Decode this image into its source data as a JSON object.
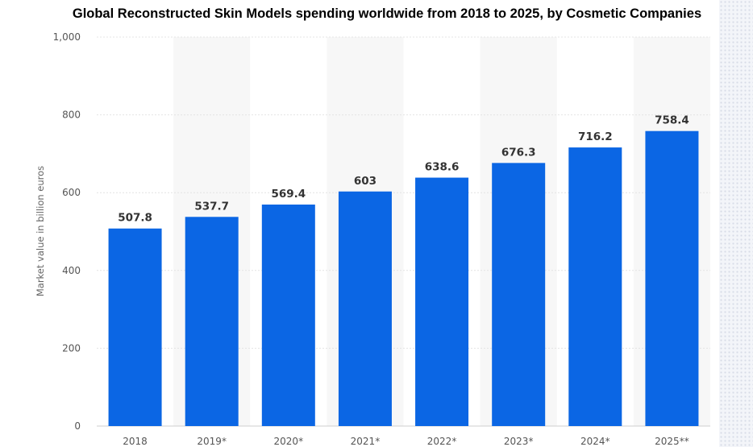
{
  "chart_data": {
    "type": "bar",
    "title": "Global Reconstructed Skin Models spending worldwide from 2018 to 2025, by Cosmetic Companies",
    "xlabel": "",
    "ylabel": "Market value in billion euros",
    "categories": [
      "2018",
      "2019*",
      "2020*",
      "2021*",
      "2022*",
      "2023*",
      "2024*",
      "2025**"
    ],
    "values": [
      507.8,
      537.7,
      569.4,
      603,
      638.6,
      676.3,
      716.2,
      758.4
    ],
    "value_labels": [
      "507.8",
      "537.7",
      "569.4",
      "603",
      "638.6",
      "676.3",
      "716.2",
      "758.4"
    ],
    "ylim": [
      0,
      1000
    ],
    "yticks": [
      0,
      200,
      400,
      600,
      800,
      1000
    ],
    "ytick_labels": [
      "0",
      "200",
      "400",
      "600",
      "800",
      "1,000"
    ],
    "grid": true,
    "legend": "none",
    "bar_color": "#0b66e4",
    "band_color": "#f7f7f7"
  }
}
